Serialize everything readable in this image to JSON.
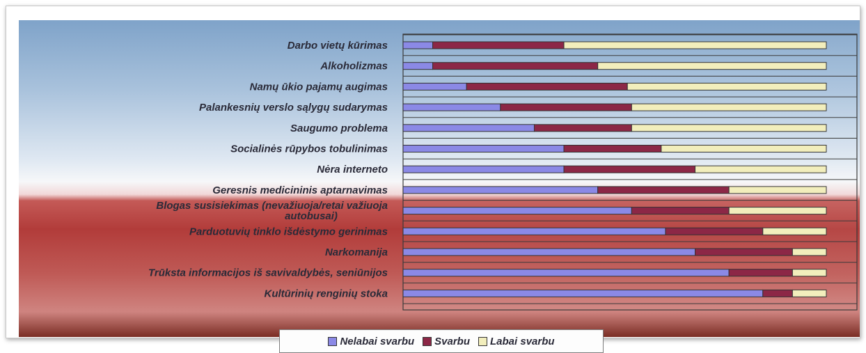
{
  "chart_data": {
    "type": "bar",
    "orientation": "horizontal",
    "stacked": true,
    "normalized_percent": true,
    "categories": [
      "Darbo vietų kūrimas",
      "Alkoholizmas",
      "Namų ūkio pajamų augimas",
      "Palankesnių verslo sąlygų sudarymas",
      "Saugumo problema",
      "Socialinės rūpybos tobulinimas",
      "Nėra interneto",
      "Geresnis medicininis aptarnavimas",
      "Blogas susisiekimas (nevažiuoja/retai važiuoja autobusai)",
      "Parduotuvių tinklo išdėstymo gerinimas",
      "Narkomanija",
      "Trūksta informacijos iš savivaldybės, seniūnijos",
      "Kultūrinių renginių stoka"
    ],
    "series": [
      {
        "name": "Nelabai svarbu",
        "color": "#8b89e6",
        "values": [
          7,
          7,
          15,
          23,
          31,
          38,
          38,
          46,
          54,
          62,
          69,
          77,
          85
        ]
      },
      {
        "name": "Svarbu",
        "color": "#8c2746",
        "values": [
          31,
          39,
          38,
          31,
          23,
          23,
          31,
          31,
          23,
          23,
          23,
          15,
          7
        ]
      },
      {
        "name": "Labai svarbu",
        "color": "#f2eebc",
        "values": [
          62,
          54,
          47,
          46,
          46,
          39,
          31,
          23,
          23,
          15,
          8,
          8,
          8
        ]
      }
    ],
    "xlim": [
      0,
      100
    ],
    "legend_position": "bottom",
    "grid": "horizontal"
  }
}
